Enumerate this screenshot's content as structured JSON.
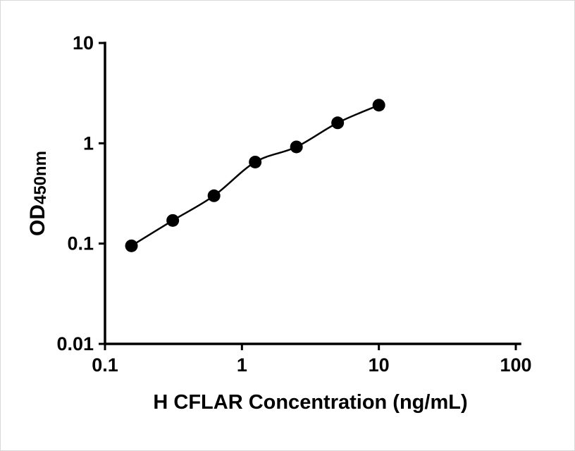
{
  "figure": {
    "title": "",
    "background": "#ffffff"
  },
  "chart_data": {
    "type": "scatter",
    "x": [
      0.156,
      0.3125,
      0.625,
      1.25,
      2.5,
      5,
      10
    ],
    "y": [
      0.095,
      0.17,
      0.3,
      0.65,
      0.92,
      1.6,
      2.4
    ],
    "xlabel": "H CFLAR Concentration (ng/mL)",
    "ylabel": "OD450nm",
    "ylabel_main": "OD",
    "ylabel_sub": "450nm",
    "xscale": "log",
    "yscale": "log",
    "xlim": [
      0.1,
      100
    ],
    "ylim": [
      0.01,
      10
    ],
    "xticks": [
      0.1,
      1,
      10,
      100
    ],
    "xtick_labels": [
      "0.1",
      "1",
      "10",
      "100"
    ],
    "yticks": [
      0.01,
      0.1,
      1,
      10
    ],
    "ytick_labels": [
      "0.01",
      "0.1",
      "1",
      "10"
    ],
    "grid": false,
    "legend_position": "none",
    "marker_color": "#000000",
    "line_color": "#000000",
    "axis_color": "#000000"
  }
}
